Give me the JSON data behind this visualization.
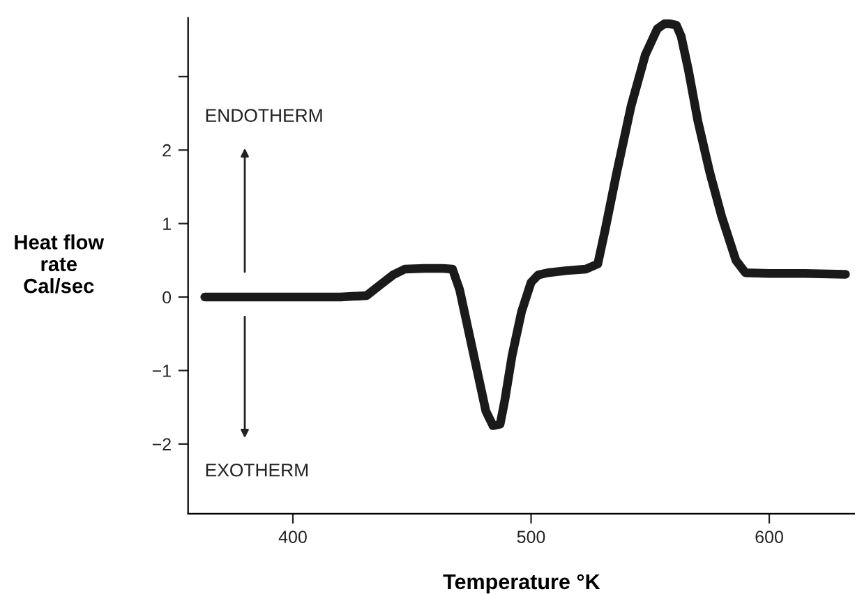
{
  "chart_data": {
    "type": "line",
    "xlabel": "Temperature °K",
    "ylabel": "Heat flow\nrate\nCal/sec",
    "annotations": [
      "ENDOTHERM",
      "EXOTHERM"
    ],
    "series": [
      {
        "color": "#1a1a1a",
        "x": [
          363,
          380,
          400,
          420,
          431,
          436,
          442,
          447,
          455,
          463,
          467,
          470,
          474,
          478,
          481,
          484,
          487,
          489,
          492,
          496,
          500,
          503,
          507,
          515,
          523,
          528,
          531,
          536,
          542,
          548,
          553,
          556,
          558,
          561,
          563,
          566,
          570,
          575,
          580,
          586,
          590,
          600,
          615,
          632
        ],
        "values": [
          0,
          0,
          0,
          0,
          0.02,
          0.15,
          0.3,
          0.38,
          0.39,
          0.39,
          0.38,
          0.1,
          -0.5,
          -1.1,
          -1.55,
          -1.75,
          -1.73,
          -1.4,
          -0.8,
          -0.2,
          0.2,
          0.3,
          0.33,
          0.36,
          0.38,
          0.45,
          0.9,
          1.7,
          2.6,
          3.3,
          3.65,
          3.72,
          3.72,
          3.7,
          3.55,
          3.1,
          2.4,
          1.7,
          1.1,
          0.5,
          0.33,
          0.32,
          0.32,
          0.31
        ]
      }
    ],
    "xlim": [
      356,
      636
    ],
    "xticks": [
      400,
      500,
      600
    ],
    "ylim": [
      -2.95,
      3.8
    ],
    "yticks": [
      -2,
      -1,
      0,
      1,
      2,
      {
        "value": 3,
        "label": null
      }
    ],
    "grid": false,
    "legend": false,
    "marker": "none",
    "line_style": "solid"
  }
}
